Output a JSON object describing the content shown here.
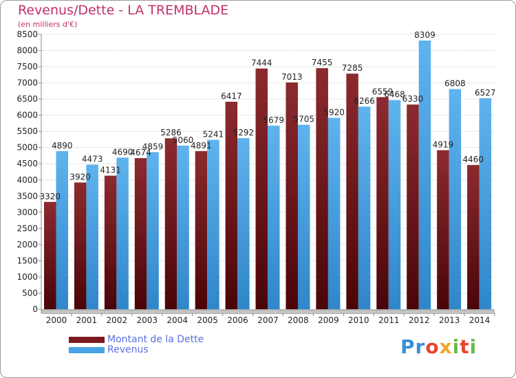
{
  "title": "Revenus/Dette - LA TREMBLADE",
  "subtitle": "(en milliers d'€)",
  "legend": {
    "items": [
      {
        "label": "Montant de la Dette",
        "color": "#7a1a1f"
      },
      {
        "label": "Revenus",
        "color": "#4aa3e4"
      }
    ]
  },
  "logo": {
    "text": "Proxiti"
  },
  "colors": {
    "debt": "#7a1a1f",
    "revenue": "#4aa3e4",
    "title": "#c0306a",
    "legend_text": "#5b6fe0"
  },
  "chart_data": {
    "type": "bar",
    "title": "Revenus/Dette - LA TREMBLADE",
    "subtitle": "(en milliers d'€)",
    "xlabel": "",
    "ylabel": "",
    "ylim": [
      0,
      8500
    ],
    "ytick_step": 500,
    "grid": true,
    "legend_position": "bottom-left",
    "categories": [
      "2000",
      "2001",
      "2002",
      "2003",
      "2004",
      "2005",
      "2006",
      "2007",
      "2008",
      "2009",
      "2010",
      "2011",
      "2012",
      "2013",
      "2014"
    ],
    "series": [
      {
        "name": "Montant de la Dette",
        "values": [
          3320,
          3920,
          4131,
          4674,
          5286,
          4891,
          6417,
          7444,
          7013,
          7455,
          7285,
          6559,
          6330,
          4919,
          4460
        ]
      },
      {
        "name": "Revenus",
        "values": [
          4890,
          4473,
          4690,
          4859,
          5060,
          5241,
          5292,
          5679,
          5705,
          5920,
          6266,
          6468,
          8309,
          6808,
          6527
        ]
      }
    ]
  }
}
